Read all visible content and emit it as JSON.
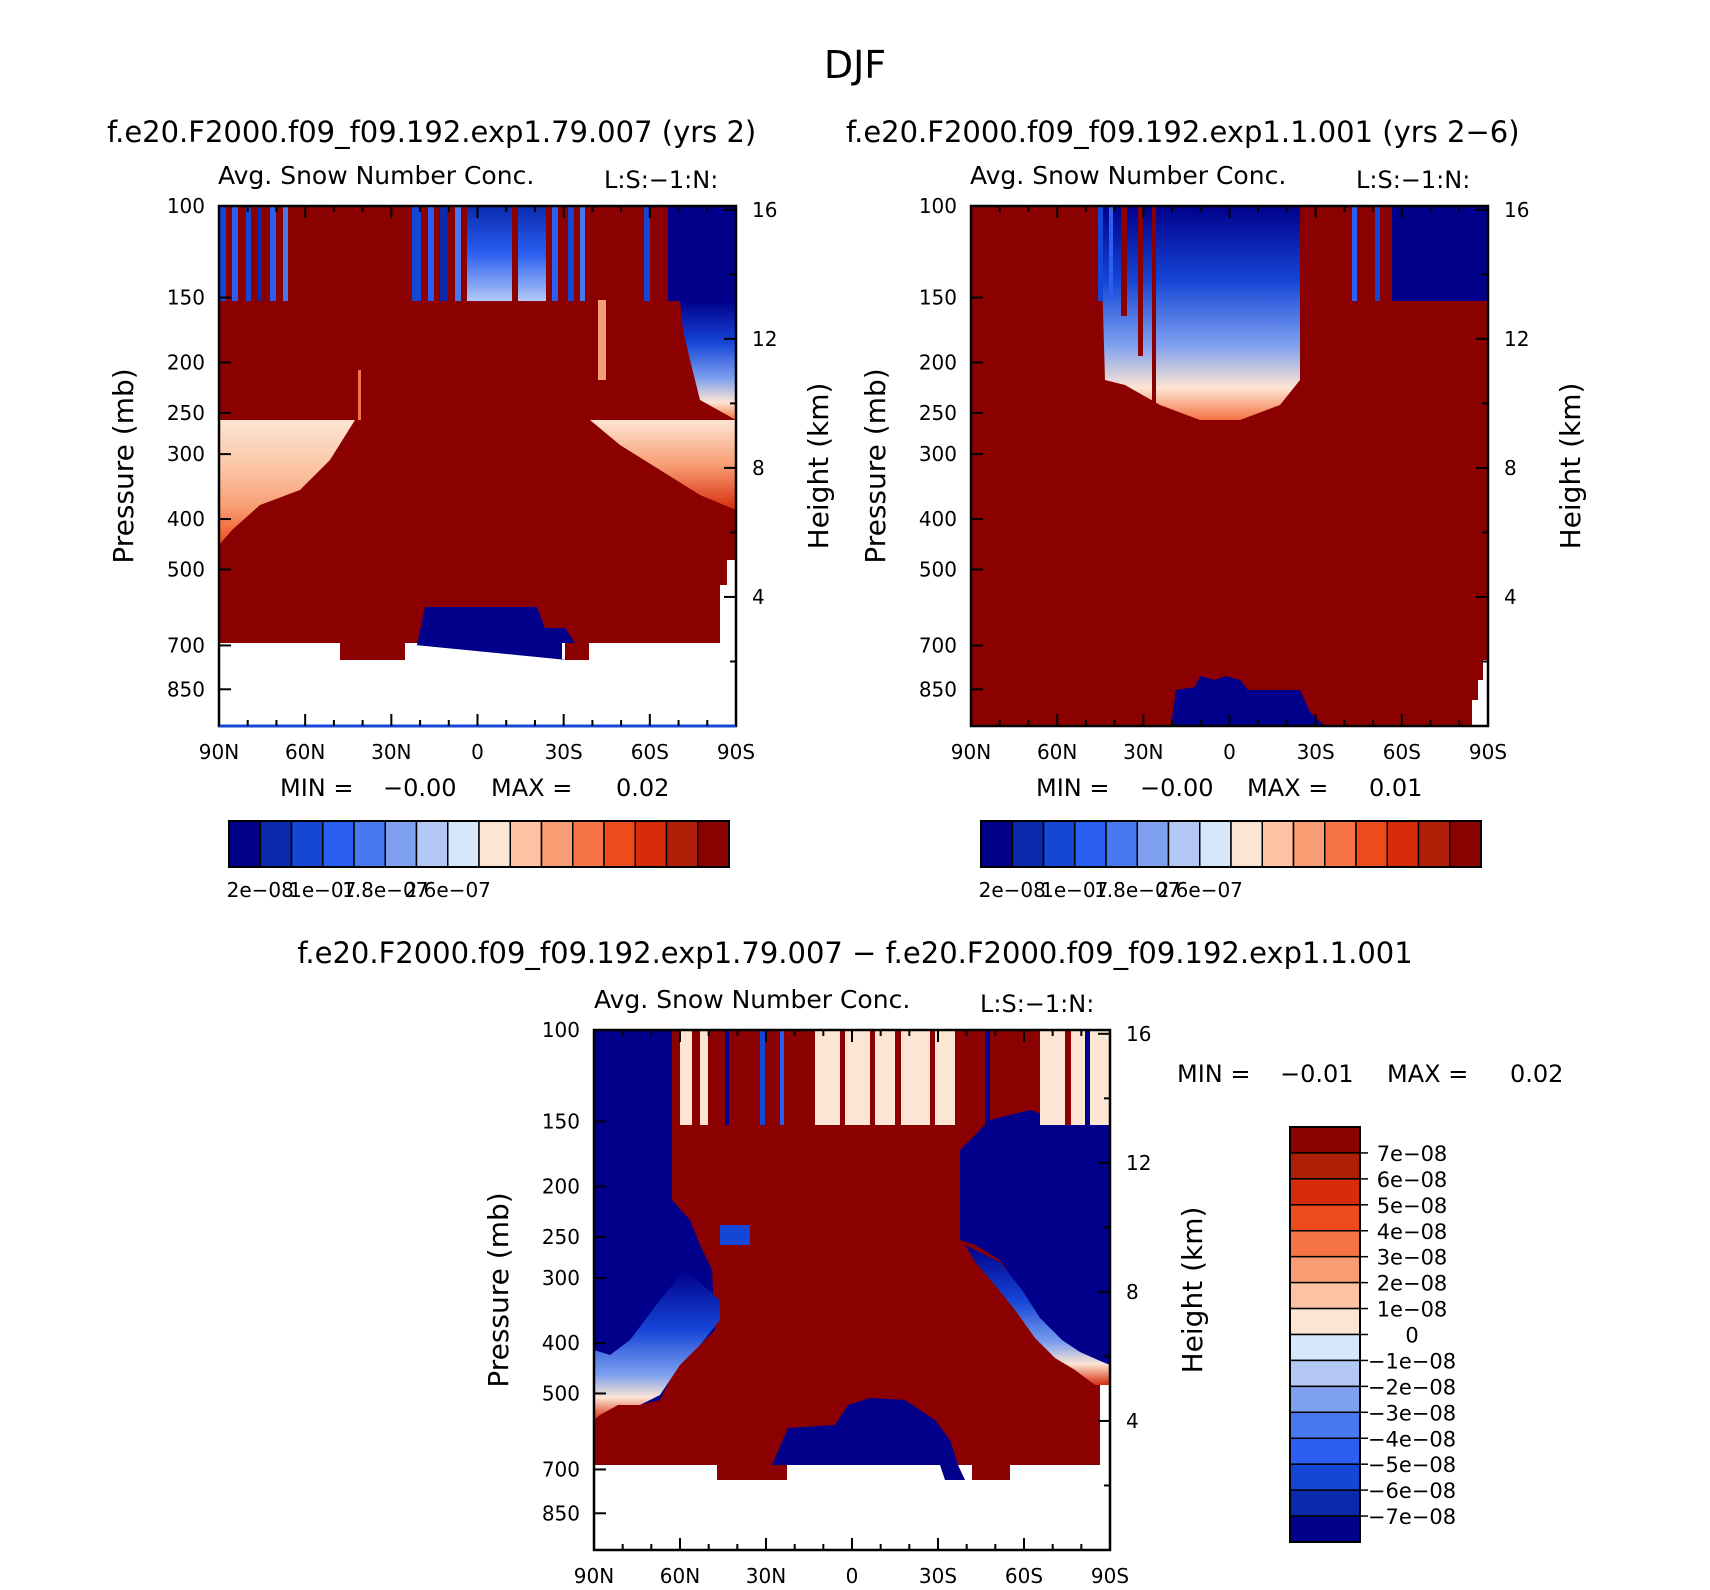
{
  "figure_title": "DJF",
  "colors": {
    "dark_red": "#8b0000",
    "dark_blue": "#00008b",
    "cb_abs": [
      "#00008b",
      "#0a2aad",
      "#1646d6",
      "#2a5ff2",
      "#4878f0",
      "#7ea0ef",
      "#b3c8f5",
      "#d6e6fb",
      "#fde5d3",
      "#fbc3a3",
      "#f89d73",
      "#f57344",
      "#ee4b1c",
      "#d62c0c",
      "#ad1f06",
      "#8b0000"
    ],
    "cb_diff": [
      "#00008b",
      "#0a2aad",
      "#1646d6",
      "#2a5ff2",
      "#4878f0",
      "#7ea0ef",
      "#b3c8f5",
      "#d6e6fb",
      "#fde5d3",
      "#fbc3a3",
      "#f89d73",
      "#f57344",
      "#ee4b1c",
      "#d62c0c",
      "#ad1f06",
      "#8b0000"
    ]
  },
  "chart_data": [
    {
      "id": "panel-left",
      "type": "heatmap",
      "title": "f.e20.F2000.f09_f09.192.exp1.79.007 (yrs 2)",
      "subtitle": "Avg. Snow Number Conc.",
      "subtitle_right": "L:S:−1:N:",
      "ylabel": "Pressure (mb)",
      "y2label": "Height (km)",
      "x_ticks": [
        "90N",
        "60N",
        "30N",
        "0",
        "30S",
        "60S",
        "90S"
      ],
      "x_range": [
        90,
        -90
      ],
      "y_ticks": [
        100,
        150,
        200,
        250,
        300,
        400,
        500,
        700,
        850
      ],
      "y_range": [
        100,
        1000
      ],
      "y2_ticks": [
        16,
        12,
        8,
        4
      ],
      "min_label": "MIN =",
      "min_value": "−0.00",
      "max_label": "MAX =",
      "max_value": "0.02",
      "colorbar_labels": [
        "2e−08",
        "1e−07",
        "1.8e−07",
        "2.6e−07"
      ]
    },
    {
      "id": "panel-right",
      "type": "heatmap",
      "title": "f.e20.F2000.f09_f09.192.exp1.1.001 (yrs 2−6)",
      "subtitle": "Avg. Snow Number Conc.",
      "subtitle_right": "L:S:−1:N:",
      "ylabel": "Pressure (mb)",
      "y2label": "Height (km)",
      "x_ticks": [
        "90N",
        "60N",
        "30N",
        "0",
        "30S",
        "60S",
        "90S"
      ],
      "x_range": [
        90,
        -90
      ],
      "y_ticks": [
        100,
        150,
        200,
        250,
        300,
        400,
        500,
        700,
        850
      ],
      "y_range": [
        100,
        1000
      ],
      "y2_ticks": [
        16,
        12,
        8,
        4
      ],
      "min_label": "MIN =",
      "min_value": "−0.00",
      "max_label": "MAX =",
      "max_value": "0.01",
      "colorbar_labels": [
        "2e−08",
        "1e−07",
        "1.8e−07",
        "2.6e−07"
      ]
    },
    {
      "id": "panel-diff",
      "type": "heatmap",
      "title": "f.e20.F2000.f09_f09.192.exp1.79.007 − f.e20.F2000.f09_f09.192.exp1.1.001",
      "subtitle": "Avg. Snow Number Conc.",
      "subtitle_right": "L:S:−1:N:",
      "ylabel": "Pressure (mb)",
      "y2label": "Height (km)",
      "x_ticks": [
        "90N",
        "60N",
        "30N",
        "0",
        "30S",
        "60S",
        "90S"
      ],
      "x_range": [
        90,
        -90
      ],
      "y_ticks": [
        100,
        150,
        200,
        250,
        300,
        400,
        500,
        700,
        850
      ],
      "y_range": [
        100,
        1000
      ],
      "y2_ticks": [
        16,
        12,
        8,
        4
      ],
      "min_label": "MIN =",
      "min_value": "−0.01",
      "max_label": "MAX =",
      "max_value": "0.02",
      "colorbar_labels": [
        "7e−08",
        "6e−08",
        "5e−08",
        "4e−08",
        "3e−08",
        "2e−08",
        "1e−08",
        "0",
        "−1e−08",
        "−2e−08",
        "−3e−08",
        "−4e−08",
        "−5e−08",
        "−6e−08",
        "−7e−08"
      ]
    }
  ]
}
